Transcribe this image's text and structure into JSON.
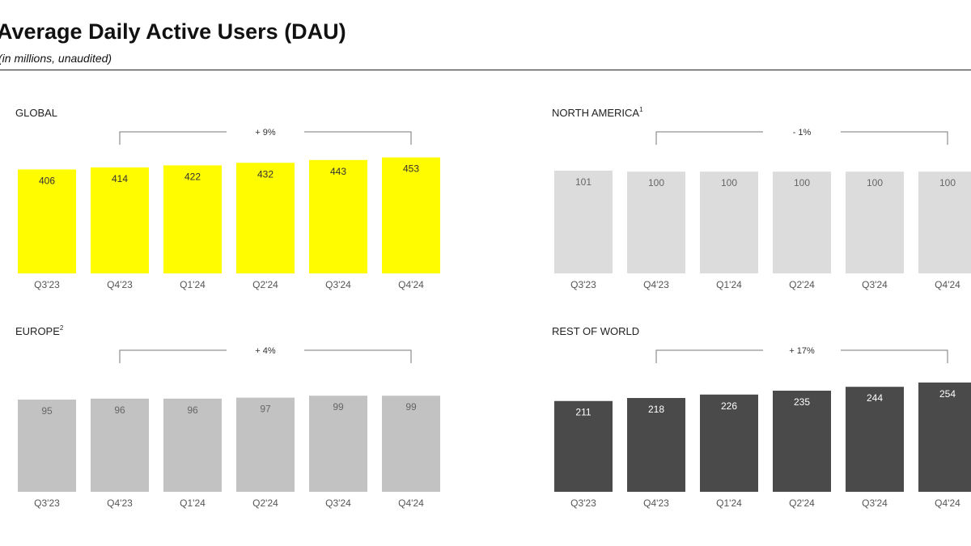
{
  "header": {
    "title": "Average Daily Active Users (DAU)",
    "subtitle": "(in millions, unaudited)"
  },
  "chart_data": [
    {
      "type": "bar",
      "title": "GLOBAL",
      "title_superscript": "",
      "categories": [
        "Q3'23",
        "Q4'23",
        "Q1'24",
        "Q2'24",
        "Q3'24",
        "Q4'24"
      ],
      "values": [
        406,
        414,
        422,
        432,
        443,
        453
      ],
      "growth_label": "+ 9%",
      "bar_color": "#FFFC00",
      "label_color": "#333333"
    },
    {
      "type": "bar",
      "title": "NORTH AMERICA",
      "title_superscript": "1",
      "categories": [
        "Q3'23",
        "Q4'23",
        "Q1'24",
        "Q2'24",
        "Q3'24",
        "Q4'24"
      ],
      "values": [
        101,
        100,
        100,
        100,
        100,
        100
      ],
      "growth_label": "- 1%",
      "bar_color": "#DCDCDC",
      "label_color": "#666666"
    },
    {
      "type": "bar",
      "title": "EUROPE",
      "title_superscript": "2",
      "categories": [
        "Q3'23",
        "Q4'23",
        "Q1'24",
        "Q2'24",
        "Q3'24",
        "Q4'24"
      ],
      "values": [
        95,
        96,
        96,
        97,
        99,
        99
      ],
      "growth_label": "+ 4%",
      "bar_color": "#C2C2C2",
      "label_color": "#666666"
    },
    {
      "type": "bar",
      "title": "REST OF WORLD",
      "title_superscript": "",
      "categories": [
        "Q3'23",
        "Q4'23",
        "Q1'24",
        "Q2'24",
        "Q3'24",
        "Q4'24"
      ],
      "values": [
        211,
        218,
        226,
        235,
        244,
        254
      ],
      "growth_label": "+ 17%",
      "bar_color": "#4A4A4A",
      "label_color": "#FFFFFF"
    }
  ]
}
